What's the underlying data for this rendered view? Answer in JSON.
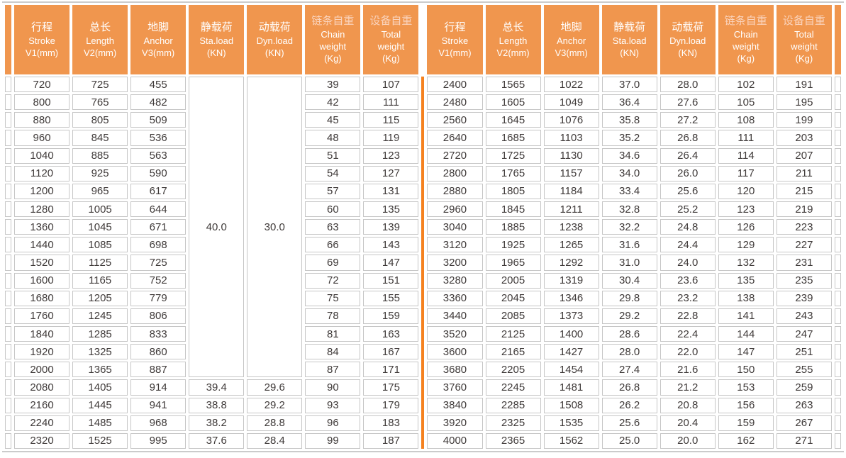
{
  "colors": {
    "header_bg": "#F0964E",
    "center_divider": "#F58220",
    "grid_line": "#C6C6C6",
    "body_text": "#3F3A39",
    "header_text": "#FFFFFF",
    "header_accent_text": "#FAD3BC"
  },
  "chart_data": {
    "type": "table",
    "column_headers": [
      {
        "key": "stroke",
        "lines": [
          "行程",
          "Stroke",
          "V1(mm)"
        ],
        "accent_first_line": false
      },
      {
        "key": "length",
        "lines": [
          "总长",
          "Length",
          "V2(mm)"
        ],
        "accent_first_line": false
      },
      {
        "key": "anchor",
        "lines": [
          "地脚",
          "Anchor",
          "V3(mm)"
        ],
        "accent_first_line": false
      },
      {
        "key": "sta-load",
        "lines": [
          "静载荷",
          "Sta.load",
          "(KN)"
        ],
        "accent_first_line": false
      },
      {
        "key": "dyn-load",
        "lines": [
          "动载荷",
          "Dyn.load",
          "(KN)"
        ],
        "accent_first_line": false
      },
      {
        "key": "chain-weight",
        "lines": [
          "链条自重",
          "Chain",
          "weight",
          "(Kg)"
        ],
        "accent_first_line": true
      },
      {
        "key": "total-weight",
        "lines": [
          "设备自重",
          "Total",
          "weight",
          "(Kg)"
        ],
        "accent_first_line": true
      }
    ],
    "halves": [
      {
        "name": "left",
        "merged": {
          "sta_load": "40.0",
          "dyn_load": "30.0",
          "span_rows": 17
        },
        "rows": [
          [
            "720",
            "725",
            "455",
            "39",
            "107"
          ],
          [
            "800",
            "765",
            "482",
            "42",
            "111"
          ],
          [
            "880",
            "805",
            "509",
            "45",
            "115"
          ],
          [
            "960",
            "845",
            "536",
            "48",
            "119"
          ],
          [
            "1040",
            "885",
            "563",
            "51",
            "123"
          ],
          [
            "1120",
            "925",
            "590",
            "54",
            "127"
          ],
          [
            "1200",
            "965",
            "617",
            "57",
            "131"
          ],
          [
            "1280",
            "1005",
            "644",
            "60",
            "135"
          ],
          [
            "1360",
            "1045",
            "671",
            "63",
            "139"
          ],
          [
            "1440",
            "1085",
            "698",
            "66",
            "143"
          ],
          [
            "1520",
            "1125",
            "725",
            "69",
            "147"
          ],
          [
            "1600",
            "1165",
            "752",
            "72",
            "151"
          ],
          [
            "1680",
            "1205",
            "779",
            "75",
            "155"
          ],
          [
            "1760",
            "1245",
            "806",
            "78",
            "159"
          ],
          [
            "1840",
            "1285",
            "833",
            "81",
            "163"
          ],
          [
            "1920",
            "1325",
            "860",
            "84",
            "167"
          ],
          [
            "2000",
            "1365",
            "887",
            "87",
            "171"
          ],
          [
            "2080",
            "1405",
            "914",
            "39.4",
            "29.6",
            "90",
            "175"
          ],
          [
            "2160",
            "1445",
            "941",
            "38.8",
            "29.2",
            "93",
            "179"
          ],
          [
            "2240",
            "1485",
            "968",
            "38.2",
            "28.8",
            "96",
            "183"
          ],
          [
            "2320",
            "1525",
            "995",
            "37.6",
            "28.4",
            "99",
            "187"
          ]
        ]
      },
      {
        "name": "right",
        "rows": [
          [
            "2400",
            "1565",
            "1022",
            "37.0",
            "28.0",
            "102",
            "191"
          ],
          [
            "2480",
            "1605",
            "1049",
            "36.4",
            "27.6",
            "105",
            "195"
          ],
          [
            "2560",
            "1645",
            "1076",
            "35.8",
            "27.2",
            "108",
            "199"
          ],
          [
            "2640",
            "1685",
            "1103",
            "35.2",
            "26.8",
            "111",
            "203"
          ],
          [
            "2720",
            "1725",
            "1130",
            "34.6",
            "26.4",
            "114",
            "207"
          ],
          [
            "2800",
            "1765",
            "1157",
            "34.0",
            "26.0",
            "117",
            "211"
          ],
          [
            "2880",
            "1805",
            "1184",
            "33.4",
            "25.6",
            "120",
            "215"
          ],
          [
            "2960",
            "1845",
            "1211",
            "32.8",
            "25.2",
            "123",
            "219"
          ],
          [
            "3040",
            "1885",
            "1238",
            "32.2",
            "24.8",
            "126",
            "223"
          ],
          [
            "3120",
            "1925",
            "1265",
            "31.6",
            "24.4",
            "129",
            "227"
          ],
          [
            "3200",
            "1965",
            "1292",
            "31.0",
            "24.0",
            "132",
            "231"
          ],
          [
            "3280",
            "2005",
            "1319",
            "30.4",
            "23.6",
            "135",
            "235"
          ],
          [
            "3360",
            "2045",
            "1346",
            "29.8",
            "23.2",
            "138",
            "239"
          ],
          [
            "3440",
            "2085",
            "1373",
            "29.2",
            "22.8",
            "141",
            "243"
          ],
          [
            "3520",
            "2125",
            "1400",
            "28.6",
            "22.4",
            "144",
            "247"
          ],
          [
            "3600",
            "2165",
            "1427",
            "28.0",
            "22.0",
            "147",
            "251"
          ],
          [
            "3680",
            "2205",
            "1454",
            "27.4",
            "21.6",
            "150",
            "255"
          ],
          [
            "3760",
            "2245",
            "1481",
            "26.8",
            "21.2",
            "153",
            "259"
          ],
          [
            "3840",
            "2285",
            "1508",
            "26.2",
            "20.8",
            "156",
            "263"
          ],
          [
            "3920",
            "2325",
            "1535",
            "25.6",
            "20.4",
            "159",
            "267"
          ],
          [
            "4000",
            "2365",
            "1562",
            "25.0",
            "20.0",
            "162",
            "271"
          ]
        ]
      }
    ]
  }
}
